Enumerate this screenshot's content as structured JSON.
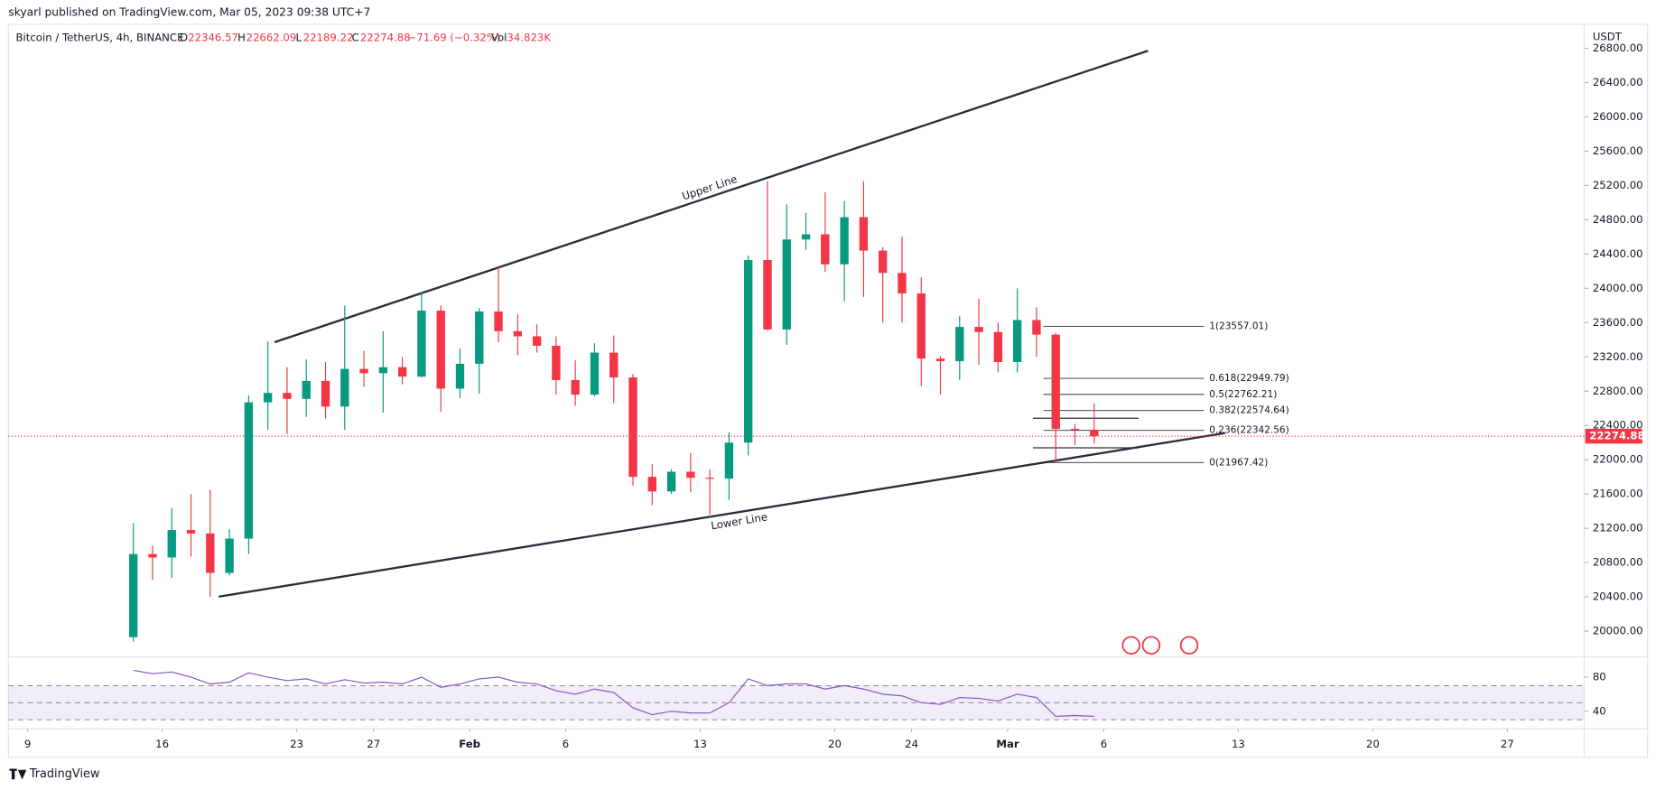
{
  "header": {
    "published": "skyarl published on TradingView.com, Mar 05, 2023 09:38 UTC+7",
    "symbol": "Bitcoin / TetherUS, 4h, BINANCE",
    "o_label": "O",
    "open": "22346.57",
    "h_label": "H",
    "high": "22662.09",
    "l_label": "L",
    "low": "22189.22",
    "c_label": "C",
    "close": "22274.88",
    "change": "−71.69 (−0.32%)",
    "vol_label": "Vol",
    "volume": "34.823K",
    "currency": "USDT"
  },
  "footer": {
    "brand": "TradingView"
  },
  "chart_data": {
    "type": "candlestick",
    "x": [
      "Jan 14",
      "Jan 15",
      "Jan 16",
      "Jan 17",
      "Jan 18",
      "Jan 19",
      "Jan 20",
      "Jan 21",
      "Jan 22",
      "Jan 23",
      "Jan 24",
      "Jan 25",
      "Jan 26",
      "Jan 27",
      "Jan 28",
      "Jan 29",
      "Jan 30",
      "Jan 31",
      "Feb 1",
      "Feb 2",
      "Feb 3",
      "Feb 4",
      "Feb 5",
      "Feb 6",
      "Feb 7",
      "Feb 8",
      "Feb 9",
      "Feb 10",
      "Feb 11",
      "Feb 12",
      "Feb 13",
      "Feb 14",
      "Feb 15",
      "Feb 16",
      "Feb 17",
      "Feb 18",
      "Feb 19",
      "Feb 20",
      "Feb 21",
      "Feb 22",
      "Feb 23",
      "Feb 24",
      "Feb 25",
      "Feb 26",
      "Feb 27",
      "Feb 28",
      "Mar 1",
      "Mar 2",
      "Mar 3",
      "Mar 4",
      "Mar 5"
    ],
    "open": [
      19930,
      20900,
      20860,
      21180,
      21140,
      20680,
      21080,
      22670,
      22780,
      22710,
      22920,
      22620,
      23060,
      23010,
      23080,
      22970,
      23740,
      22830,
      23120,
      23730,
      23500,
      23440,
      23330,
      22930,
      22760,
      23250,
      22960,
      21800,
      21630,
      21860,
      21790,
      21780,
      22200,
      24330,
      23520,
      24570,
      24630,
      24280,
      24830,
      24440,
      24180,
      23940,
      23180,
      23150,
      23550,
      23490,
      23140,
      23630,
      23460,
      22360,
      22350
    ],
    "high": [
      21260,
      21000,
      21440,
      21600,
      21650,
      21190,
      22750,
      23380,
      23080,
      23170,
      23140,
      23800,
      23270,
      23500,
      23200,
      23960,
      23800,
      23300,
      23770,
      24250,
      23700,
      23580,
      23440,
      23160,
      23360,
      23450,
      23000,
      21950,
      21890,
      22080,
      21890,
      22320,
      24380,
      25250,
      24980,
      24880,
      25120,
      25020,
      25250,
      24480,
      24600,
      24130,
      23210,
      23680,
      23880,
      23600,
      24000,
      23780,
      23480,
      22420,
      22660
    ],
    "low": [
      19880,
      20600,
      20620,
      20870,
      20400,
      20650,
      20900,
      22350,
      22300,
      22500,
      22480,
      22350,
      22850,
      22550,
      22880,
      22960,
      22560,
      22720,
      22770,
      23370,
      23220,
      23250,
      22760,
      22630,
      22740,
      22660,
      21700,
      21470,
      21600,
      21620,
      21360,
      21530,
      22050,
      23510,
      23340,
      24450,
      24190,
      23850,
      23900,
      23600,
      23600,
      22860,
      22760,
      22930,
      23110,
      23020,
      23020,
      23200,
      21970,
      22170,
      22190
    ],
    "close": [
      20900,
      20860,
      21180,
      21140,
      20680,
      21080,
      22670,
      22780,
      22710,
      22920,
      22620,
      23060,
      23010,
      23080,
      22970,
      23740,
      22830,
      23120,
      23730,
      23500,
      23440,
      23330,
      22930,
      22760,
      23250,
      22960,
      21800,
      21630,
      21860,
      21790,
      21780,
      22200,
      24330,
      23520,
      24570,
      24630,
      24280,
      24830,
      24440,
      24180,
      23940,
      23180,
      23150,
      23550,
      23490,
      23140,
      23630,
      23460,
      22360,
      22350,
      22275
    ],
    "up_color": "#089981",
    "down_color": "#f23645",
    "ylim": [
      19700,
      27080
    ],
    "yticks": [
      {
        "value": 20000,
        "label": "20000.00"
      },
      {
        "value": 20400,
        "label": "20400.00"
      },
      {
        "value": 20800,
        "label": "20800.00"
      },
      {
        "value": 21200,
        "label": "21200.00"
      },
      {
        "value": 21600,
        "label": "21600.00"
      },
      {
        "value": 22000,
        "label": "22000.00"
      },
      {
        "value": 22400,
        "label": "22400.00"
      },
      {
        "value": 22800,
        "label": "22800.00"
      },
      {
        "value": 23200,
        "label": "23200.00"
      },
      {
        "value": 23600,
        "label": "23600.00"
      },
      {
        "value": 24000,
        "label": "24000.00"
      },
      {
        "value": 24400,
        "label": "24400.00"
      },
      {
        "value": 24800,
        "label": "24800.00"
      },
      {
        "value": 25200,
        "label": "25200.00"
      },
      {
        "value": 25600,
        "label": "25600.00"
      },
      {
        "value": 26000,
        "label": "26000.00"
      },
      {
        "value": 26400,
        "label": "26400.00"
      },
      {
        "value": 26800,
        "label": "26800.00"
      }
    ],
    "xlim": [
      "Jan 8",
      "Mar 31"
    ],
    "xticks": [
      {
        "value": "Jan 9",
        "label": "9"
      },
      {
        "value": "Jan 16",
        "label": "16"
      },
      {
        "value": "Jan 23",
        "label": "23"
      },
      {
        "value": "Jan 27",
        "label": "27"
      },
      {
        "value": "Feb 1",
        "label": "Feb"
      },
      {
        "value": "Feb 6",
        "label": "6"
      },
      {
        "value": "Feb 13",
        "label": "13"
      },
      {
        "value": "Feb 20",
        "label": "20"
      },
      {
        "value": "Feb 24",
        "label": "24"
      },
      {
        "value": "Mar 1",
        "label": "Mar"
      },
      {
        "value": "Mar 6",
        "label": "6"
      },
      {
        "value": "Mar 13",
        "label": "13"
      },
      {
        "value": "Mar 20",
        "label": "20"
      },
      {
        "value": "Mar 27",
        "label": "27"
      }
    ],
    "last_price": {
      "value": 22274.88,
      "label": "22274.88",
      "color": "#f23645"
    },
    "annotations": [
      "Upper Line",
      "Lower Line"
    ],
    "fib": [
      {
        "value": 23557.01,
        "label": "1(23557.01)"
      },
      {
        "value": 22949.79,
        "label": "0.618(22949.79)"
      },
      {
        "value": 22762.21,
        "label": "0.5(22762.21)"
      },
      {
        "value": 22574.64,
        "label": "0.382(22574.64)"
      },
      {
        "value": 22342.56,
        "label": "0.236(22342.56)"
      },
      {
        "value": 21967.42,
        "label": "0(21967.42)"
      }
    ],
    "rsi": {
      "values": [
        88,
        84,
        86,
        80,
        72,
        74,
        85,
        80,
        76,
        78,
        72,
        77,
        73,
        74,
        72,
        80,
        68,
        72,
        78,
        80,
        74,
        72,
        64,
        60,
        66,
        62,
        44,
        36,
        40,
        38,
        38,
        50,
        78,
        70,
        72,
        72,
        66,
        70,
        66,
        60,
        58,
        50,
        48,
        56,
        55,
        52,
        60,
        56,
        34,
        35,
        34
      ],
      "color": "#7e57c2",
      "ylim": [
        22,
        100
      ],
      "yticks": [
        40,
        80
      ],
      "levels": [
        70,
        50,
        30
      ]
    }
  }
}
